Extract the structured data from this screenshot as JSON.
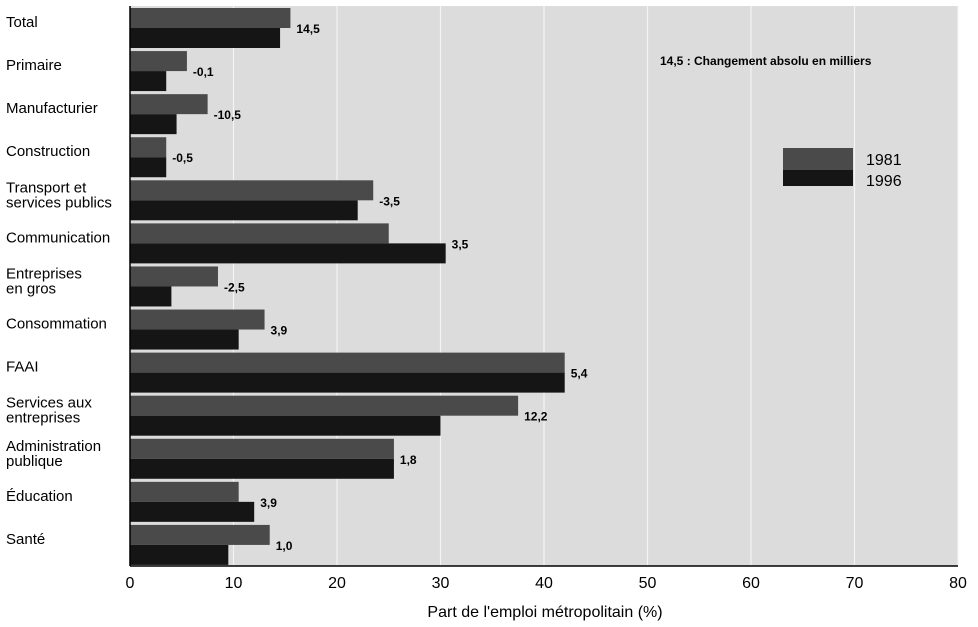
{
  "chart_data": {
    "type": "bar",
    "orientation": "horizontal",
    "categories": [
      [
        "Total"
      ],
      [
        "Primaire"
      ],
      [
        "Manufacturier"
      ],
      [
        "Construction"
      ],
      [
        "Transport et",
        "services publics"
      ],
      [
        "Communication"
      ],
      [
        "Entreprises",
        "en gros"
      ],
      [
        "Consommation"
      ],
      [
        "FAAI"
      ],
      [
        "Services aux",
        "entreprises"
      ],
      [
        "Administration",
        "publique"
      ],
      [
        "Éducation"
      ],
      [
        "Santé"
      ]
    ],
    "series": [
      {
        "name": "1981",
        "color": "#4a4a4a",
        "values": [
          15.5,
          5.5,
          7.5,
          3.5,
          23.5,
          25.0,
          8.5,
          13.0,
          42.0,
          37.5,
          25.5,
          10.5,
          13.5
        ]
      },
      {
        "name": "1996",
        "color": "#151515",
        "values": [
          14.5,
          3.5,
          4.5,
          3.5,
          22.0,
          30.5,
          4.0,
          10.5,
          42.0,
          30.0,
          25.5,
          12.0,
          9.5
        ]
      }
    ],
    "data_labels": [
      "14,5",
      "-0,1",
      "-10,5",
      "-0,5",
      "-3,5",
      "3,5",
      "-2,5",
      "3,9",
      "5,4",
      "12,2",
      "1,8",
      "3,9",
      "1,0"
    ],
    "annotation": "14,5 : Changement absolu en milliers",
    "xlabel": "Part de l'emploi métropolitain (%)",
    "ylabel": "",
    "title": "",
    "xlim": [
      0,
      80
    ],
    "xticks": [
      0,
      10,
      20,
      30,
      40,
      50,
      60,
      70,
      80
    ],
    "plot_background": "#dcdcdc",
    "grid": "vertical",
    "legend_position": "top-right"
  }
}
